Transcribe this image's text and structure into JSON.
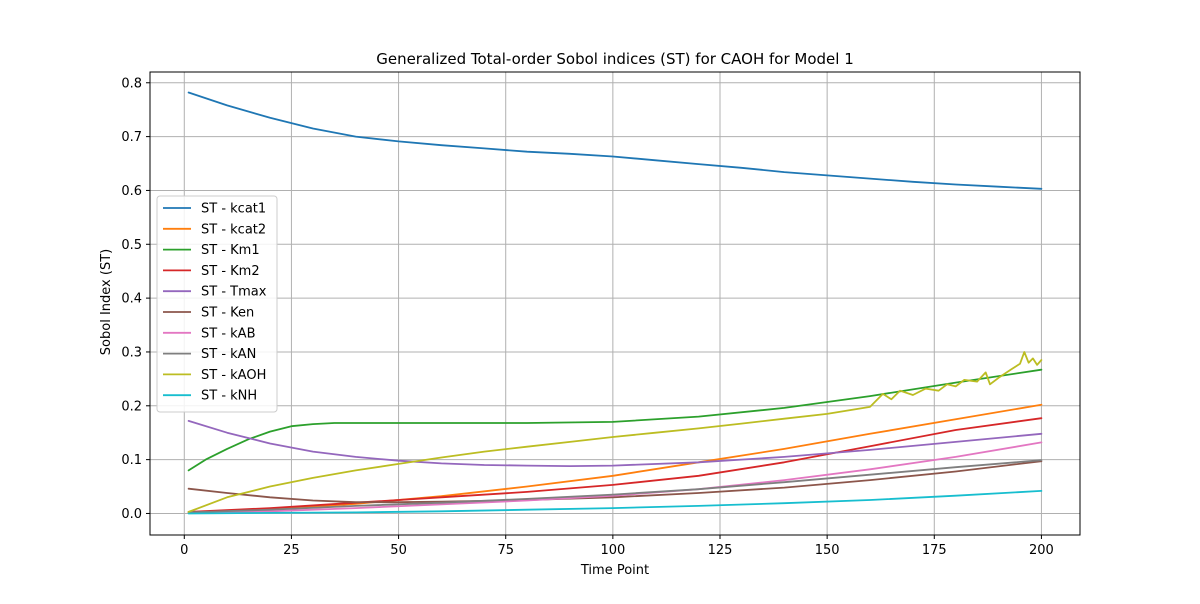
{
  "chart_data": {
    "type": "line",
    "title": "Generalized Total-order Sobol indices (ST) for CAOH for Model 1",
    "xlabel": "Time Point",
    "ylabel": "Sobol Index (ST)",
    "xlim": [
      -8,
      209
    ],
    "ylim": [
      -0.04,
      0.82
    ],
    "xticks": [
      0,
      25,
      50,
      75,
      100,
      125,
      150,
      175,
      200
    ],
    "yticks": [
      0.0,
      0.1,
      0.2,
      0.3,
      0.4,
      0.5,
      0.6,
      0.7,
      0.8
    ],
    "xtick_labels": [
      "0",
      "25",
      "50",
      "75",
      "100",
      "125",
      "150",
      "175",
      "200"
    ],
    "ytick_labels": [
      "0.0",
      "0.1",
      "0.2",
      "0.3",
      "0.4",
      "0.5",
      "0.6",
      "0.7",
      "0.8"
    ],
    "grid": true,
    "legend_position": "center-left",
    "series": [
      {
        "name": "ST - kcat1",
        "color": "#1f77b4",
        "x": [
          1,
          10,
          20,
          30,
          40,
          50,
          60,
          70,
          80,
          90,
          100,
          110,
          120,
          130,
          140,
          150,
          160,
          170,
          180,
          190,
          200
        ],
        "y": [
          0.782,
          0.758,
          0.735,
          0.715,
          0.7,
          0.691,
          0.684,
          0.678,
          0.672,
          0.668,
          0.663,
          0.656,
          0.649,
          0.642,
          0.634,
          0.628,
          0.622,
          0.616,
          0.611,
          0.607,
          0.603
        ]
      },
      {
        "name": "ST - kcat2",
        "color": "#ff7f0e",
        "x": [
          1,
          20,
          40,
          60,
          80,
          100,
          120,
          140,
          160,
          180,
          200
        ],
        "y": [
          0.002,
          0.008,
          0.018,
          0.032,
          0.05,
          0.07,
          0.095,
          0.12,
          0.148,
          0.175,
          0.202
        ]
      },
      {
        "name": "ST - Km1",
        "color": "#2ca02c",
        "x": [
          1,
          5,
          10,
          15,
          20,
          25,
          30,
          35,
          40,
          60,
          80,
          100,
          120,
          140,
          160,
          180,
          200
        ],
        "y": [
          0.08,
          0.1,
          0.12,
          0.138,
          0.152,
          0.162,
          0.166,
          0.168,
          0.168,
          0.168,
          0.168,
          0.17,
          0.18,
          0.196,
          0.218,
          0.243,
          0.267
        ]
      },
      {
        "name": "ST - Km2",
        "color": "#d62728",
        "x": [
          1,
          20,
          40,
          60,
          80,
          100,
          120,
          140,
          160,
          180,
          200
        ],
        "y": [
          0.003,
          0.01,
          0.02,
          0.03,
          0.04,
          0.053,
          0.07,
          0.095,
          0.125,
          0.155,
          0.177
        ]
      },
      {
        "name": "ST - Tmax",
        "color": "#9467bd",
        "x": [
          1,
          10,
          20,
          30,
          40,
          50,
          60,
          70,
          80,
          90,
          100,
          120,
          140,
          160,
          180,
          200
        ],
        "y": [
          0.172,
          0.15,
          0.13,
          0.115,
          0.105,
          0.098,
          0.093,
          0.09,
          0.089,
          0.088,
          0.089,
          0.095,
          0.105,
          0.118,
          0.133,
          0.148
        ]
      },
      {
        "name": "ST - Ken",
        "color": "#8c564b",
        "x": [
          1,
          10,
          20,
          30,
          40,
          50,
          60,
          80,
          100,
          120,
          140,
          160,
          180,
          200
        ],
        "y": [
          0.046,
          0.038,
          0.03,
          0.024,
          0.021,
          0.021,
          0.022,
          0.025,
          0.03,
          0.038,
          0.048,
          0.062,
          0.078,
          0.097
        ]
      },
      {
        "name": "ST - kAB",
        "color": "#e377c2",
        "x": [
          1,
          20,
          40,
          60,
          80,
          100,
          120,
          140,
          160,
          180,
          200
        ],
        "y": [
          0.001,
          0.004,
          0.01,
          0.017,
          0.024,
          0.033,
          0.045,
          0.062,
          0.082,
          0.105,
          0.132
        ]
      },
      {
        "name": "ST - kAN",
        "color": "#7f7f7f",
        "x": [
          1,
          20,
          40,
          60,
          80,
          100,
          120,
          140,
          160,
          180,
          200
        ],
        "y": [
          0.002,
          0.007,
          0.014,
          0.02,
          0.027,
          0.035,
          0.045,
          0.058,
          0.072,
          0.086,
          0.099
        ]
      },
      {
        "name": "ST - kAOH",
        "color": "#bcbd22",
        "x": [
          1,
          10,
          20,
          30,
          40,
          50,
          60,
          70,
          80,
          90,
          100,
          110,
          120,
          130,
          140,
          150,
          160,
          163,
          165,
          167,
          170,
          173,
          176,
          178,
          180,
          182,
          185,
          187,
          188,
          190,
          193,
          195,
          196,
          197,
          198,
          199,
          200
        ],
        "y": [
          0.003,
          0.03,
          0.05,
          0.066,
          0.08,
          0.092,
          0.104,
          0.115,
          0.124,
          0.133,
          0.142,
          0.15,
          0.158,
          0.167,
          0.176,
          0.185,
          0.198,
          0.222,
          0.212,
          0.228,
          0.22,
          0.232,
          0.228,
          0.24,
          0.236,
          0.248,
          0.245,
          0.262,
          0.24,
          0.252,
          0.268,
          0.278,
          0.3,
          0.28,
          0.288,
          0.276,
          0.285
        ]
      },
      {
        "name": "ST - kNH",
        "color": "#17becf",
        "x": [
          1,
          20,
          40,
          60,
          80,
          100,
          120,
          140,
          160,
          180,
          200
        ],
        "y": [
          0.0,
          0.001,
          0.002,
          0.004,
          0.007,
          0.01,
          0.014,
          0.019,
          0.025,
          0.033,
          0.042
        ]
      }
    ]
  }
}
